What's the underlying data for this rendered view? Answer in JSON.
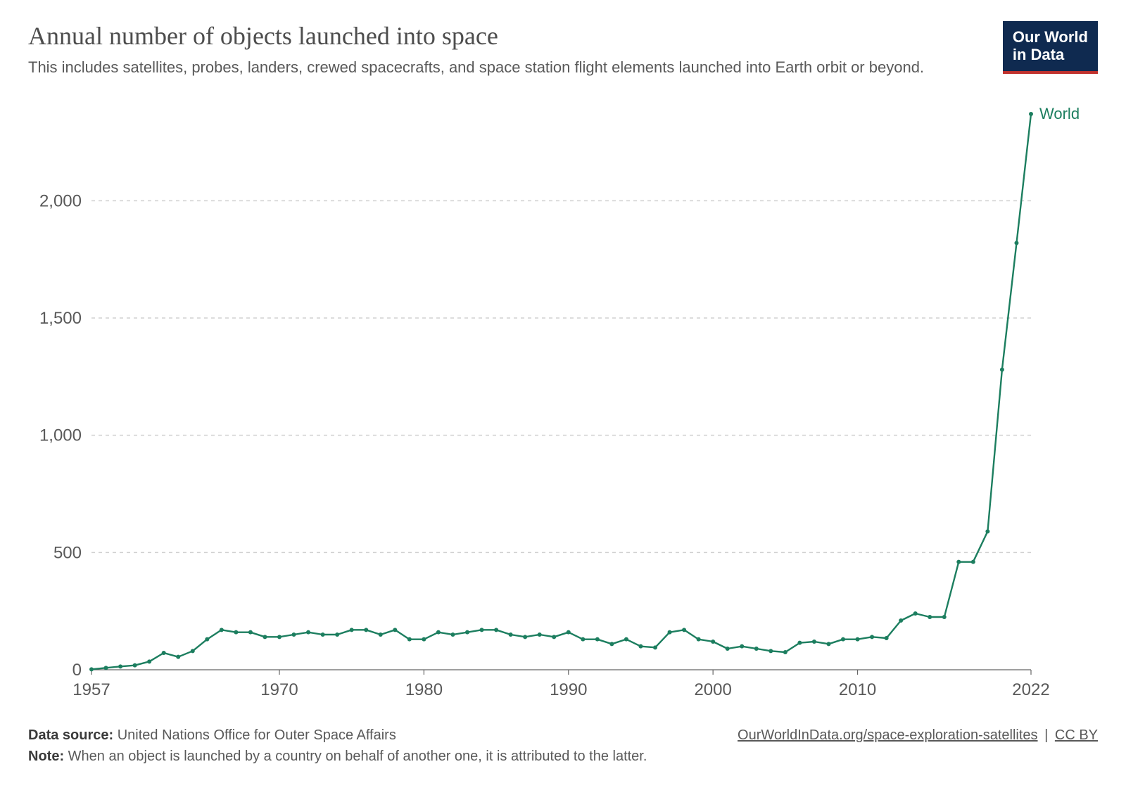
{
  "header": {
    "title": "Annual number of objects launched into space",
    "subtitle": "This includes satellites, probes, landers, crewed spacecrafts, and space station flight elements launched into Earth orbit or beyond.",
    "logo_line1": "Our World",
    "logo_line2": "in Data",
    "logo_bg": "#0f2a50",
    "logo_text_color": "#ffffff",
    "logo_accent": "#c0322e"
  },
  "chart": {
    "type": "line",
    "series_label": "World",
    "line_color": "#1c7e5f",
    "line_width": 2.4,
    "marker_radius": 3,
    "marker_fill": "#1c7e5f",
    "grid_color": "#d0d0d0",
    "axis_text_color": "#595959",
    "axis_fontsize": 24,
    "series_label_fontsize": 22,
    "series_label_color": "#1c7e5f",
    "background_color": "#ffffff",
    "x_axis_line_color": "#666666",
    "xlim": [
      1957,
      2022
    ],
    "ylim": [
      0,
      2400
    ],
    "yticks": [
      0,
      500,
      1000,
      1500,
      2000
    ],
    "ytick_labels": [
      "0",
      "500",
      "1,000",
      "1,500",
      "2,000"
    ],
    "xticks": [
      1957,
      1970,
      1980,
      1990,
      2000,
      2010,
      2022
    ],
    "xtick_labels": [
      "1957",
      "1970",
      "1980",
      "1990",
      "2000",
      "2010",
      "2022"
    ],
    "years": [
      1957,
      1958,
      1959,
      1960,
      1961,
      1962,
      1963,
      1964,
      1965,
      1966,
      1967,
      1968,
      1969,
      1970,
      1971,
      1972,
      1973,
      1974,
      1975,
      1976,
      1977,
      1978,
      1979,
      1980,
      1981,
      1982,
      1983,
      1984,
      1985,
      1986,
      1987,
      1988,
      1989,
      1990,
      1991,
      1992,
      1993,
      1994,
      1995,
      1996,
      1997,
      1998,
      1999,
      2000,
      2001,
      2002,
      2003,
      2004,
      2005,
      2006,
      2007,
      2008,
      2009,
      2010,
      2011,
      2012,
      2013,
      2014,
      2015,
      2016,
      2017,
      2018,
      2019,
      2020,
      2021,
      2022
    ],
    "values": [
      2,
      8,
      14,
      19,
      35,
      72,
      55,
      80,
      130,
      170,
      160,
      160,
      140,
      140,
      150,
      160,
      150,
      150,
      170,
      170,
      150,
      170,
      130,
      130,
      160,
      150,
      160,
      170,
      170,
      150,
      140,
      150,
      140,
      160,
      130,
      130,
      110,
      130,
      100,
      95,
      160,
      170,
      130,
      120,
      90,
      100,
      90,
      80,
      75,
      115,
      120,
      110,
      130,
      130,
      140,
      135,
      210,
      240,
      225,
      225,
      460,
      460,
      590,
      1280,
      1820,
      2370
    ]
  },
  "footer": {
    "source_label": "Data source:",
    "source_text": "United Nations Office for Outer Space Affairs",
    "link_text": "OurWorldInData.org/space-exploration-satellites",
    "license_text": "CC BY",
    "note_label": "Note:",
    "note_text": "When an object is launched by a country on behalf of another one, it is attributed to the latter."
  }
}
